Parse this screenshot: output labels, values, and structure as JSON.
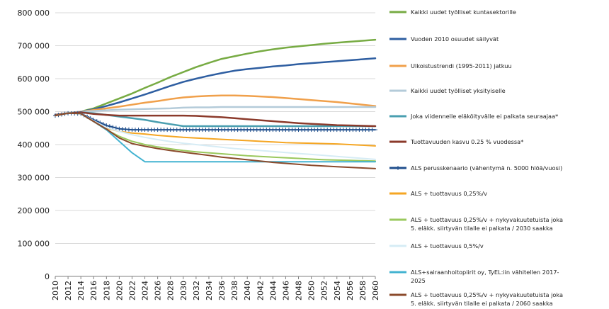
{
  "chart_data": {
    "type": "line",
    "title": "",
    "xlabel": "",
    "ylabel": "",
    "x": [
      2010,
      2012,
      2014,
      2016,
      2018,
      2020,
      2022,
      2024,
      2026,
      2028,
      2030,
      2032,
      2034,
      2036,
      2038,
      2040,
      2042,
      2044,
      2046,
      2048,
      2050,
      2052,
      2054,
      2056,
      2058,
      2060
    ],
    "ylim": [
      0,
      800000
    ],
    "yticks": [
      0,
      100000,
      200000,
      300000,
      400000,
      500000,
      600000,
      700000,
      800000
    ],
    "ytick_labels": [
      "0",
      "100 000",
      "200 000",
      "300 000",
      "400 000",
      "500 000",
      "600 000",
      "700 000",
      "800 000"
    ],
    "xtick_labels": [
      "2010",
      "2012",
      "2014",
      "2016",
      "2018",
      "2020",
      "2022",
      "2024",
      "2026",
      "2028",
      "2030",
      "2032",
      "2034",
      "2036",
      "2038",
      "2040",
      "2042",
      "2044",
      "2046",
      "2048",
      "2050",
      "2052",
      "2054",
      "2056",
      "2058",
      "2060"
    ],
    "grid": true,
    "legend_position": "right",
    "series": [
      {
        "name": "Kaikki uudet työlliset kuntasektorille",
        "color": "#77ab43",
        "width": 2.5,
        "values": [
          490000,
          495000,
          500000,
          510000,
          525000,
          540000,
          555000,
          572000,
          588000,
          605000,
          620000,
          635000,
          648000,
          660000,
          668000,
          676000,
          683000,
          689000,
          694000,
          698000,
          702000,
          706000,
          709000,
          712000,
          715000,
          718000
        ]
      },
      {
        "name": "Vuoden 2010 osuudet säilyvät",
        "color": "#2e5ea1",
        "width": 2.5,
        "values": [
          490000,
          495000,
          500000,
          507000,
          517000,
          528000,
          540000,
          552000,
          565000,
          578000,
          590000,
          600000,
          609000,
          617000,
          624000,
          629000,
          633000,
          637000,
          640000,
          644000,
          647000,
          650000,
          653000,
          656000,
          659000,
          662000
        ]
      },
      {
        "name": "Ulkoistustrendi (1995-2011) jatkuu",
        "color": "#f0a04b",
        "width": 2.5,
        "values": [
          490000,
          495000,
          500000,
          505000,
          510000,
          515000,
          521000,
          527000,
          532000,
          538000,
          543000,
          546000,
          548000,
          549000,
          549000,
          548000,
          546000,
          544000,
          541000,
          538000,
          535000,
          532000,
          529000,
          525000,
          521000,
          517000
        ]
      },
      {
        "name": "Kaikki uudet työlliset yksityiselle",
        "color": "#b4cbd9",
        "width": 2.5,
        "values": [
          490000,
          495000,
          500000,
          502000,
          504000,
          506000,
          507000,
          508000,
          509000,
          510000,
          512000,
          513000,
          513000,
          514000,
          514000,
          514000,
          514000,
          514000,
          514000,
          514000,
          514000,
          514000,
          514000,
          514000,
          514000,
          514000
        ]
      },
      {
        "name": "Joka viidennelle eläköityvälle ei palkata seuraajaa*",
        "color": "#4a9fb0",
        "width": 2.5,
        "values": [
          490000,
          495000,
          498000,
          495000,
          490000,
          485000,
          480000,
          475000,
          468000,
          462000,
          456000,
          456000,
          456000,
          456000,
          456000,
          456000,
          456000,
          456000,
          456000,
          456000,
          456000,
          456000,
          456000,
          456000,
          456000,
          456000
        ]
      },
      {
        "name": "Tuottavuuden kasvu 0.25 % vuodessa*",
        "color": "#8b3a2b",
        "width": 2.5,
        "values": [
          490000,
          495000,
          498000,
          493000,
          490000,
          488000,
          488000,
          488000,
          488000,
          488000,
          488000,
          487000,
          485000,
          483000,
          480000,
          477000,
          474000,
          471000,
          468000,
          465000,
          463000,
          461000,
          459000,
          458000,
          457000,
          456000
        ]
      },
      {
        "name": "ALS perusskenaario (vähentymä n. 5000 hlöä/vuosi)",
        "color": "#1f4e8c",
        "width": 2,
        "marker": "star",
        "values": [
          488000,
          495000,
          494000,
          475000,
          458000,
          448000,
          445000,
          445000,
          445000,
          445000,
          445000,
          445000,
          445000,
          445000,
          445000,
          445000,
          445000,
          445000,
          445000,
          445000,
          445000,
          445000,
          445000,
          445000,
          445000,
          445000
        ]
      },
      {
        "name": "ALS + tuottavuus 0,25%/v",
        "color": "#f5a623",
        "width": 2,
        "values": [
          488000,
          495000,
          494000,
          470000,
          450000,
          440000,
          435000,
          432000,
          428000,
          425000,
          422000,
          420000,
          418000,
          416000,
          414000,
          412000,
          410000,
          408000,
          406000,
          405000,
          404000,
          403000,
          402000,
          400000,
          398000,
          396000
        ]
      },
      {
        "name": "ALS + tuottavuus 0,25%/v + nykyvakuutetuista joka 5. eläkk. siirtyvän tilalle ei palkata / 2030 saakka",
        "color": "#9ac85d",
        "width": 2,
        "values": [
          488000,
          495000,
          494000,
          470000,
          445000,
          425000,
          410000,
          400000,
          393000,
          387000,
          382000,
          378000,
          375000,
          372000,
          369000,
          366000,
          364000,
          362000,
          360000,
          358000,
          356000,
          354000,
          353000,
          352000,
          351000,
          350000
        ]
      },
      {
        "name": "ALS + tuottavuus 0,5%/v",
        "color": "#d6ecf5",
        "width": 2,
        "values": [
          488000,
          495000,
          494000,
          472000,
          452000,
          440000,
          430000,
          422000,
          415000,
          409000,
          404000,
          400000,
          396000,
          392000,
          388000,
          385000,
          382000,
          379000,
          376000,
          373000,
          370000,
          367000,
          364000,
          361000,
          358000,
          355000
        ]
      },
      {
        "name": "ALS+sairaanhoitopiirit oy, TyEL:iin vähitellen 2017-2025",
        "color": "#43b3d1",
        "width": 2,
        "values": [
          488000,
          495000,
          494000,
          470000,
          445000,
          410000,
          375000,
          348000,
          348000,
          348000,
          348000,
          348000,
          348000,
          348000,
          348000,
          348000,
          348000,
          348000,
          348000,
          348000,
          348000,
          348000,
          348000,
          348000,
          348000,
          348000
        ]
      },
      {
        "name": "ALS + tuottavuus 0,25%/v + nykyvakuutetuista joka 5. eläkk. siirtyvän tilalle ei palkata / 2060 saakka",
        "color": "#8b4a2b",
        "width": 2,
        "values": [
          488000,
          495000,
          494000,
          470000,
          447000,
          420000,
          403000,
          395000,
          388000,
          382000,
          377000,
          372000,
          367000,
          362000,
          358000,
          354000,
          350000,
          346000,
          343000,
          340000,
          337000,
          335000,
          333000,
          331000,
          329000,
          327000
        ]
      }
    ]
  },
  "legend_lines": [
    [
      "Kaikki uudet työlliset kuntasektorille"
    ],
    [
      "Vuoden 2010 osuudet säilyvät"
    ],
    [
      "Ulkoistustrendi (1995-2011) jatkuu"
    ],
    [
      "Kaikki uudet työlliset yksityiselle"
    ],
    [
      "Joka viidennelle eläköityvälle ei palkata seuraajaa*"
    ],
    [
      "Tuottavuuden kasvu 0.25 % vuodessa*"
    ],
    [
      "ALS perusskenaario (vähentymä n. 5000 hlöä/vuosi)"
    ],
    [
      "ALS + tuottavuus 0,25%/v"
    ],
    [
      "ALS + tuottavuus 0,25%/v + nykyvakuutetuista joka",
      "5. eläkk. siirtyvän tilalle ei palkata / 2030 saakka"
    ],
    [
      "ALS + tuottavuus 0,5%/v"
    ],
    [
      "ALS+sairaanhoitopiirit oy, TyEL:iin vähitellen 2017-",
      "2025"
    ],
    [
      "ALS + tuottavuus 0,25%/v + nykyvakuutetuista joka",
      "5. eläkk. siirtyvän tilalle ei palkata / 2060 saakka"
    ]
  ]
}
